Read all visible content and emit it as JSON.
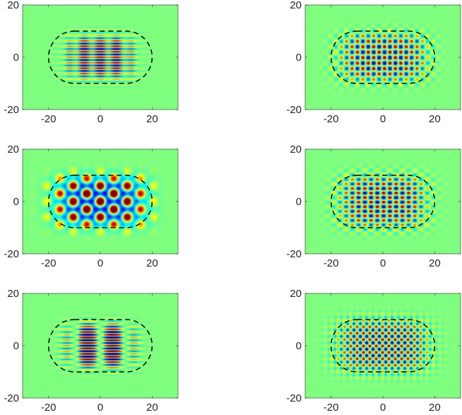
{
  "chart_data": [
    {
      "type": "heatmap",
      "panel": "top-left",
      "xlim": [
        -30,
        30
      ],
      "ylim": [
        -20,
        20
      ],
      "xticks": [
        -20,
        0,
        20
      ],
      "yticks": [
        -20,
        0,
        20
      ],
      "xtick_labels": [
        "-20",
        "0",
        "20"
      ],
      "ytick_labels": [
        "-20",
        "0",
        "20"
      ],
      "colormap": "jet",
      "background_color": "#80ff80",
      "boundary": {
        "shape": "stadium",
        "x_half_length": 20,
        "y_half_height": 10,
        "line": "dashed",
        "color": "#000000"
      },
      "field": {
        "pattern": "horizontal-stripes",
        "kx": 0.25,
        "ky": 3.0,
        "phase": 0.0,
        "sigma_x": 14,
        "sigma_y": 9,
        "amplitude": 1.0
      }
    },
    {
      "type": "heatmap",
      "panel": "top-right",
      "xlim": [
        -30,
        30
      ],
      "ylim": [
        -20,
        20
      ],
      "xticks": [
        -20,
        0,
        20
      ],
      "yticks": [
        -20,
        0,
        20
      ],
      "xtick_labels": [
        "-20",
        "0",
        "20"
      ],
      "ytick_labels": [
        "-20",
        "0",
        "20"
      ],
      "colormap": "jet",
      "background_color": "#80ff80",
      "boundary": {
        "shape": "stadium",
        "x_half_length": 20,
        "y_half_height": 10,
        "line": "dashed",
        "color": "#000000"
      },
      "field": {
        "pattern": "checker",
        "kx": 1.5,
        "ky": 1.5,
        "phase": 0.6,
        "sigma_x": 18,
        "sigma_y": 10,
        "amplitude": 1.0
      }
    },
    {
      "type": "heatmap",
      "panel": "middle-left",
      "xlim": [
        -30,
        30
      ],
      "ylim": [
        -20,
        20
      ],
      "xticks": [
        -20,
        0,
        20
      ],
      "yticks": [
        -20,
        0,
        20
      ],
      "xtick_labels": [
        "-20",
        "0",
        "20"
      ],
      "ytick_labels": [
        "-20",
        "0",
        "20"
      ],
      "colormap": "jet",
      "background_color": "#80ff80",
      "boundary": {
        "shape": "stadium",
        "x_half_length": 20,
        "y_half_height": 10,
        "line": "dashed",
        "color": "#000000"
      },
      "field": {
        "pattern": "hexagonal",
        "kx": 1.2,
        "ky": 1.2,
        "phase": 0.0,
        "sigma_x": 18,
        "sigma_y": 10,
        "amplitude": 0.8
      }
    },
    {
      "type": "heatmap",
      "panel": "middle-right",
      "xlim": [
        -30,
        30
      ],
      "ylim": [
        -20,
        20
      ],
      "xticks": [
        -20,
        0,
        20
      ],
      "yticks": [
        -20,
        0,
        20
      ],
      "xtick_labels": [
        "-20",
        "0",
        "20"
      ],
      "ytick_labels": [
        "-20",
        "0",
        "20"
      ],
      "colormap": "jet",
      "background_color": "#80ff80",
      "boundary": {
        "shape": "stadium",
        "x_half_length": 20,
        "y_half_height": 10,
        "line": "dashed",
        "color": "#000000"
      },
      "field": {
        "pattern": "checker",
        "kx": 1.3,
        "ky": 1.8,
        "phase": 1.2,
        "sigma_x": 18,
        "sigma_y": 11,
        "amplitude": 1.0
      }
    },
    {
      "type": "heatmap",
      "panel": "bottom-left",
      "xlim": [
        -30,
        30
      ],
      "ylim": [
        -20,
        20
      ],
      "xticks": [
        -20,
        0,
        20
      ],
      "yticks": [
        -20,
        0,
        20
      ],
      "xtick_labels": [
        "-20",
        "0",
        "20"
      ],
      "ytick_labels": [
        "-20",
        "0",
        "20"
      ],
      "colormap": "jet",
      "background_color": "#80ff80",
      "boundary": {
        "shape": "stadium",
        "x_half_length": 20,
        "y_half_height": 10,
        "line": "dashed",
        "color": "#000000"
      },
      "field": {
        "pattern": "split-stripes",
        "kx": 0.2,
        "ky": 3.0,
        "phase": 0.0,
        "sigma_x": 14,
        "sigma_y": 9,
        "amplitude": 1.0
      }
    },
    {
      "type": "heatmap",
      "panel": "bottom-right",
      "xlim": [
        -30,
        30
      ],
      "ylim": [
        -20,
        20
      ],
      "xticks": [
        -20,
        0,
        20
      ],
      "yticks": [
        -20,
        0,
        20
      ],
      "xtick_labels": [
        "-20",
        "0",
        "20"
      ],
      "ytick_labels": [
        "-20",
        "0",
        "20"
      ],
      "colormap": "jet",
      "background_color": "#80ff80",
      "boundary": {
        "shape": "stadium",
        "x_half_length": 20,
        "y_half_height": 10,
        "line": "dashed",
        "color": "#000000"
      },
      "field": {
        "pattern": "diamond",
        "kx": 1.6,
        "ky": 1.6,
        "phase": 0.3,
        "sigma_x": 19,
        "sigma_y": 11,
        "amplitude": 1.0
      }
    }
  ]
}
